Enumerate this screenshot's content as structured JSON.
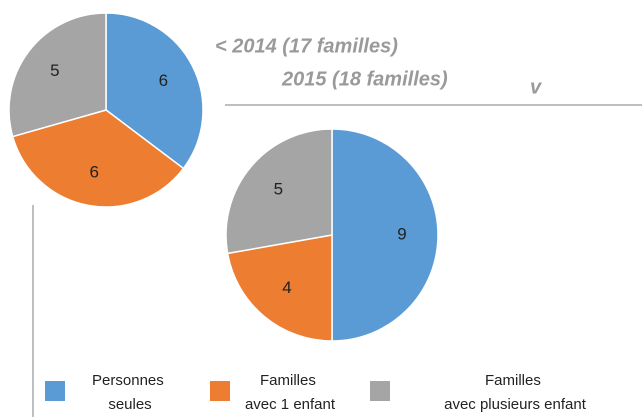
{
  "chart_data": [
    {
      "type": "pie",
      "title": "< 2014 (17 familles)",
      "categories": [
        "Personnes seules",
        "Familles avec 1 enfant",
        "Familles avec plusieurs enfant"
      ],
      "values": [
        6,
        6,
        5
      ],
      "colors": [
        "#5b9bd5",
        "#ed7d31",
        "#a5a5a5"
      ]
    },
    {
      "type": "pie",
      "title": "2015 (18 familles)",
      "annotations": [
        "v"
      ],
      "values": [
        9,
        4,
        5
      ],
      "colors": [
        "#5b9bd5",
        "#ed7d31",
        "#a5a5a5"
      ]
    }
  ]
}
